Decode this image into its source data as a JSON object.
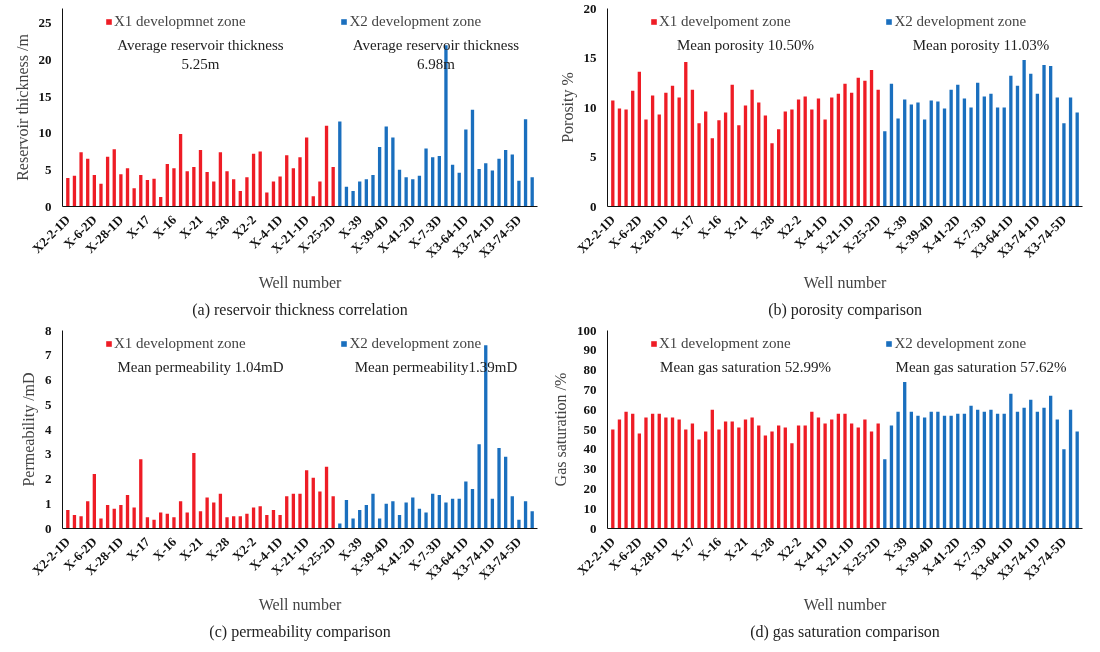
{
  "chart_data": [
    {
      "type": "bar",
      "title": "(a) reservoir thickness correlation",
      "xlabel": "Well number",
      "ylabel": "Reservoir thickness /m",
      "categories": [
        "X2-2-1D",
        null,
        null,
        null,
        "X-6-2D",
        null,
        null,
        null,
        "X-28-1D",
        null,
        null,
        null,
        "X-17",
        null,
        null,
        null,
        "X-16",
        null,
        null,
        null,
        "X-21",
        null,
        null,
        null,
        "X-28",
        null,
        null,
        null,
        "X2-2",
        null,
        null,
        null,
        "X-4-1D",
        null,
        null,
        null,
        "X-21-1D",
        null,
        null,
        null,
        "X-25-2D",
        null,
        null,
        null,
        "X-39",
        null,
        null,
        null,
        "X-39-4D",
        null,
        null,
        null,
        "X-41-2D",
        null,
        null,
        null,
        "X-7-3D",
        null,
        null,
        null,
        "X3-64-1D",
        null,
        null,
        null,
        "X3-74-1D",
        null,
        null,
        null,
        "X3-74-5D",
        null,
        null
      ],
      "series": [
        {
          "name": "X1 developmnet zone",
          "color": "#ee1c25",
          "values": [
            3.9,
            4.2,
            7.4,
            6.5,
            4.3,
            3.1,
            6.8,
            7.8,
            4.4,
            5.2,
            2.5,
            4.3,
            3.6,
            3.8,
            1.3,
            5.8,
            5.2,
            9.9,
            4.8,
            5.4,
            7.7,
            4.7,
            3.4,
            7.4,
            4.8,
            3.7,
            2.1,
            4.0,
            7.2,
            7.5,
            1.9,
            3.4,
            4.1,
            7.0,
            5.2,
            6.7,
            9.4,
            1.4,
            3.4,
            11.0,
            5.4,
            null,
            null,
            null,
            null,
            null,
            null,
            null,
            null,
            null,
            null,
            null,
            null,
            null,
            null,
            null,
            null,
            null,
            null,
            null,
            null,
            null,
            null,
            null,
            null,
            null,
            null,
            null,
            null,
            null,
            null
          ]
        },
        {
          "name": "X2 development zone",
          "color": "#1a6fbe",
          "values": [
            null,
            null,
            null,
            null,
            null,
            null,
            null,
            null,
            null,
            null,
            null,
            null,
            null,
            null,
            null,
            null,
            null,
            null,
            null,
            null,
            null,
            null,
            null,
            null,
            null,
            null,
            null,
            null,
            null,
            null,
            null,
            null,
            null,
            null,
            null,
            null,
            null,
            null,
            null,
            null,
            null,
            11.6,
            2.7,
            2.1,
            3.4,
            3.7,
            4.3,
            8.1,
            10.9,
            9.4,
            5.0,
            4.0,
            3.7,
            4.2,
            7.9,
            6.7,
            6.9,
            22.0,
            5.7,
            4.6,
            10.5,
            13.2,
            5.1,
            5.9,
            4.9,
            6.5,
            7.7,
            7.1,
            3.5,
            11.9,
            4.0
          ]
        }
      ],
      "annotations": [
        "Average reservoir thickness\n5.25m",
        "Average reservoir thickness\n6.98m"
      ],
      "ylim": [
        0,
        27
      ],
      "yticks": [
        0,
        5,
        10,
        15,
        20,
        25
      ],
      "legend": "top",
      "grid": false
    },
    {
      "type": "bar",
      "title": "(b) porosity comparison",
      "xlabel": "Well number",
      "ylabel": "Porosity %",
      "categories": [
        "X2-2-1D",
        null,
        null,
        null,
        "X-6-2D",
        null,
        null,
        null,
        "X-28-1D",
        null,
        null,
        null,
        "X-17",
        null,
        null,
        null,
        "X-16",
        null,
        null,
        null,
        "X-21",
        null,
        null,
        null,
        "X-28",
        null,
        null,
        null,
        "X2-2",
        null,
        null,
        null,
        "X-4-1D",
        null,
        null,
        null,
        "X-21-1D",
        null,
        null,
        null,
        "X-25-2D",
        null,
        null,
        null,
        "X-39",
        null,
        null,
        null,
        "X-39-4D",
        null,
        null,
        null,
        "X-41-2D",
        null,
        null,
        null,
        "X-7-3D",
        null,
        null,
        null,
        "X3-64-1D",
        null,
        null,
        null,
        "X3-74-1D",
        null,
        null,
        null,
        "X3-74-5D",
        null,
        null
      ],
      "series": [
        {
          "name": "X1 develpoment zone",
          "color": "#ee1c25",
          "values": [
            10.7,
            9.9,
            9.8,
            11.7,
            13.6,
            8.8,
            11.2,
            9.3,
            11.5,
            12.2,
            11.0,
            14.6,
            11.8,
            8.4,
            9.6,
            6.9,
            8.7,
            9.5,
            12.3,
            8.2,
            10.2,
            11.8,
            10.5,
            9.2,
            6.4,
            7.8,
            9.6,
            9.8,
            10.8,
            11.1,
            9.8,
            10.9,
            8.8,
            11.0,
            11.4,
            12.4,
            11.5,
            13.0,
            12.7,
            13.8,
            11.8,
            null,
            null,
            null,
            null,
            null,
            null,
            null,
            null,
            null,
            null,
            null,
            null,
            null,
            null,
            null,
            null,
            null,
            null,
            null,
            null,
            null,
            null,
            null,
            null,
            null,
            null,
            null,
            null,
            null,
            null
          ]
        },
        {
          "name": "X2 development zone",
          "color": "#1a6fbe",
          "values": [
            null,
            null,
            null,
            null,
            null,
            null,
            null,
            null,
            null,
            null,
            null,
            null,
            null,
            null,
            null,
            null,
            null,
            null,
            null,
            null,
            null,
            null,
            null,
            null,
            null,
            null,
            null,
            null,
            null,
            null,
            null,
            null,
            null,
            null,
            null,
            null,
            null,
            null,
            null,
            null,
            null,
            7.6,
            12.4,
            8.9,
            10.8,
            10.3,
            10.5,
            8.8,
            10.7,
            10.6,
            9.9,
            11.8,
            12.3,
            10.9,
            10.0,
            12.5,
            11.1,
            11.4,
            10.0,
            10.0,
            13.2,
            12.2,
            14.8,
            13.4,
            11.4,
            14.3,
            14.2,
            11.0,
            8.4,
            11.0,
            9.5
          ]
        }
      ],
      "annotations": [
        "Mean porosity 10.50%",
        "Mean porosity 11.03%"
      ],
      "ylim": [
        0,
        20
      ],
      "yticks": [
        0,
        5,
        10,
        15,
        20
      ],
      "legend": "top",
      "grid": false
    },
    {
      "type": "bar",
      "title": "(c) permeability comparison",
      "xlabel": "Well number",
      "ylabel": "Permeability /mD",
      "categories": [
        "X2-2-1D",
        null,
        null,
        null,
        "X-6-2D",
        null,
        null,
        null,
        "X-28-1D",
        null,
        null,
        null,
        "X-17",
        null,
        null,
        null,
        "X-16",
        null,
        null,
        null,
        "X-21",
        null,
        null,
        null,
        "X-28",
        null,
        null,
        null,
        "X2-2",
        null,
        null,
        null,
        "X-4-1D",
        null,
        null,
        null,
        "X-21-1D",
        null,
        null,
        null,
        "X-25-2D",
        null,
        null,
        null,
        "X-39",
        null,
        null,
        null,
        "X-39-4D",
        null,
        null,
        null,
        "X-41-2D",
        null,
        null,
        null,
        "X-7-3D",
        null,
        null,
        null,
        "X3-64-1D",
        null,
        null,
        null,
        "X3-74-1D",
        null,
        null,
        null,
        "X3-74-5D",
        null,
        null
      ],
      "series": [
        {
          "name": "X1 development zone",
          "color": "#ee1c25",
          "values": [
            0.75,
            0.55,
            0.5,
            1.1,
            2.2,
            0.4,
            0.95,
            0.8,
            0.95,
            1.35,
            0.85,
            2.8,
            0.45,
            0.35,
            0.65,
            0.6,
            0.45,
            1.1,
            0.65,
            3.05,
            0.7,
            1.25,
            1.05,
            1.4,
            0.45,
            0.5,
            0.5,
            0.6,
            0.85,
            0.9,
            0.55,
            0.75,
            0.55,
            1.3,
            1.4,
            1.4,
            2.35,
            2.05,
            1.5,
            2.5,
            1.3,
            null,
            null,
            null,
            null,
            null,
            null,
            null,
            null,
            null,
            null,
            null,
            null,
            null,
            null,
            null,
            null,
            null,
            null,
            null,
            null,
            null,
            null,
            null,
            null,
            null,
            null,
            null,
            null,
            null,
            null
          ]
        },
        {
          "name": "X2 development zone",
          "color": "#1a6fbe",
          "values": [
            null,
            null,
            null,
            null,
            null,
            null,
            null,
            null,
            null,
            null,
            null,
            null,
            null,
            null,
            null,
            null,
            null,
            null,
            null,
            null,
            null,
            null,
            null,
            null,
            null,
            null,
            null,
            null,
            null,
            null,
            null,
            null,
            null,
            null,
            null,
            null,
            null,
            null,
            null,
            null,
            null,
            0.2,
            1.15,
            0.4,
            0.75,
            0.95,
            1.4,
            0.4,
            1.0,
            1.1,
            0.55,
            1.05,
            1.25,
            0.8,
            0.65,
            1.4,
            1.35,
            1.05,
            1.2,
            1.2,
            1.9,
            1.6,
            3.4,
            7.4,
            1.2,
            3.25,
            2.9,
            1.3,
            0.35,
            1.1,
            0.7
          ]
        }
      ],
      "annotations": [
        "Mean permeability 1.04mD",
        "Mean permeability1.39mD"
      ],
      "ylim": [
        0,
        8
      ],
      "yticks": [
        0,
        1,
        2,
        3,
        4,
        5,
        6,
        7,
        8
      ],
      "legend": "top",
      "grid": false
    },
    {
      "type": "bar",
      "title": "(d) gas saturation comparison",
      "xlabel": "Well number",
      "ylabel": "Gas saturation /%",
      "categories": [
        "X2-2-1D",
        null,
        null,
        null,
        "X-6-2D",
        null,
        null,
        null,
        "X-28-1D",
        null,
        null,
        null,
        "X-17",
        null,
        null,
        null,
        "X-16",
        null,
        null,
        null,
        "X-21",
        null,
        null,
        null,
        "X-28",
        null,
        null,
        null,
        "X2-2",
        null,
        null,
        null,
        "X-4-1D",
        null,
        null,
        null,
        "X-21-1D",
        null,
        null,
        null,
        "X-25-2D",
        null,
        null,
        null,
        "X-39",
        null,
        null,
        null,
        "X-39-4D",
        null,
        null,
        null,
        "X-41-2D",
        null,
        null,
        null,
        "X-7-3D",
        null,
        null,
        null,
        "X3-64-1D",
        null,
        null,
        null,
        "X3-74-1D",
        null,
        null,
        null,
        "X3-74-5D",
        null,
        null
      ],
      "series": [
        {
          "name": "X1 development zone",
          "color": "#ee1c25",
          "values": [
            50,
            55,
            59,
            58,
            48,
            56,
            58,
            58,
            56,
            56,
            55,
            50,
            53,
            45,
            49,
            60,
            50,
            54,
            54,
            51,
            55,
            56,
            52,
            47,
            49,
            52,
            51,
            43,
            52,
            52,
            59,
            56,
            53,
            55,
            58,
            58,
            53,
            51,
            55,
            49,
            53,
            null,
            null,
            null,
            null,
            null,
            null,
            null,
            null,
            null,
            null,
            null,
            null,
            null,
            null,
            null,
            null,
            null,
            null,
            null,
            null,
            null,
            null,
            null,
            null,
            null,
            null,
            null,
            null,
            null,
            null
          ]
        },
        {
          "name": "X2 development zone",
          "color": "#1a6fbe",
          "values": [
            null,
            null,
            null,
            null,
            null,
            null,
            null,
            null,
            null,
            null,
            null,
            null,
            null,
            null,
            null,
            null,
            null,
            null,
            null,
            null,
            null,
            null,
            null,
            null,
            null,
            null,
            null,
            null,
            null,
            null,
            null,
            null,
            null,
            null,
            null,
            null,
            null,
            null,
            null,
            null,
            null,
            35,
            52,
            59,
            74,
            59,
            57,
            56,
            59,
            59,
            57,
            57,
            58,
            58,
            62,
            60,
            59,
            60,
            58,
            58,
            68,
            59,
            61,
            65,
            59,
            61,
            67,
            55,
            40,
            60,
            49
          ]
        }
      ],
      "annotations": [
        "Mean gas saturation 52.99%",
        "Mean gas saturation 57.62%"
      ],
      "ylim": [
        0,
        100
      ],
      "yticks": [
        0,
        10,
        20,
        30,
        40,
        50,
        60,
        70,
        80,
        90,
        100
      ],
      "legend": "top",
      "grid": false
    }
  ]
}
